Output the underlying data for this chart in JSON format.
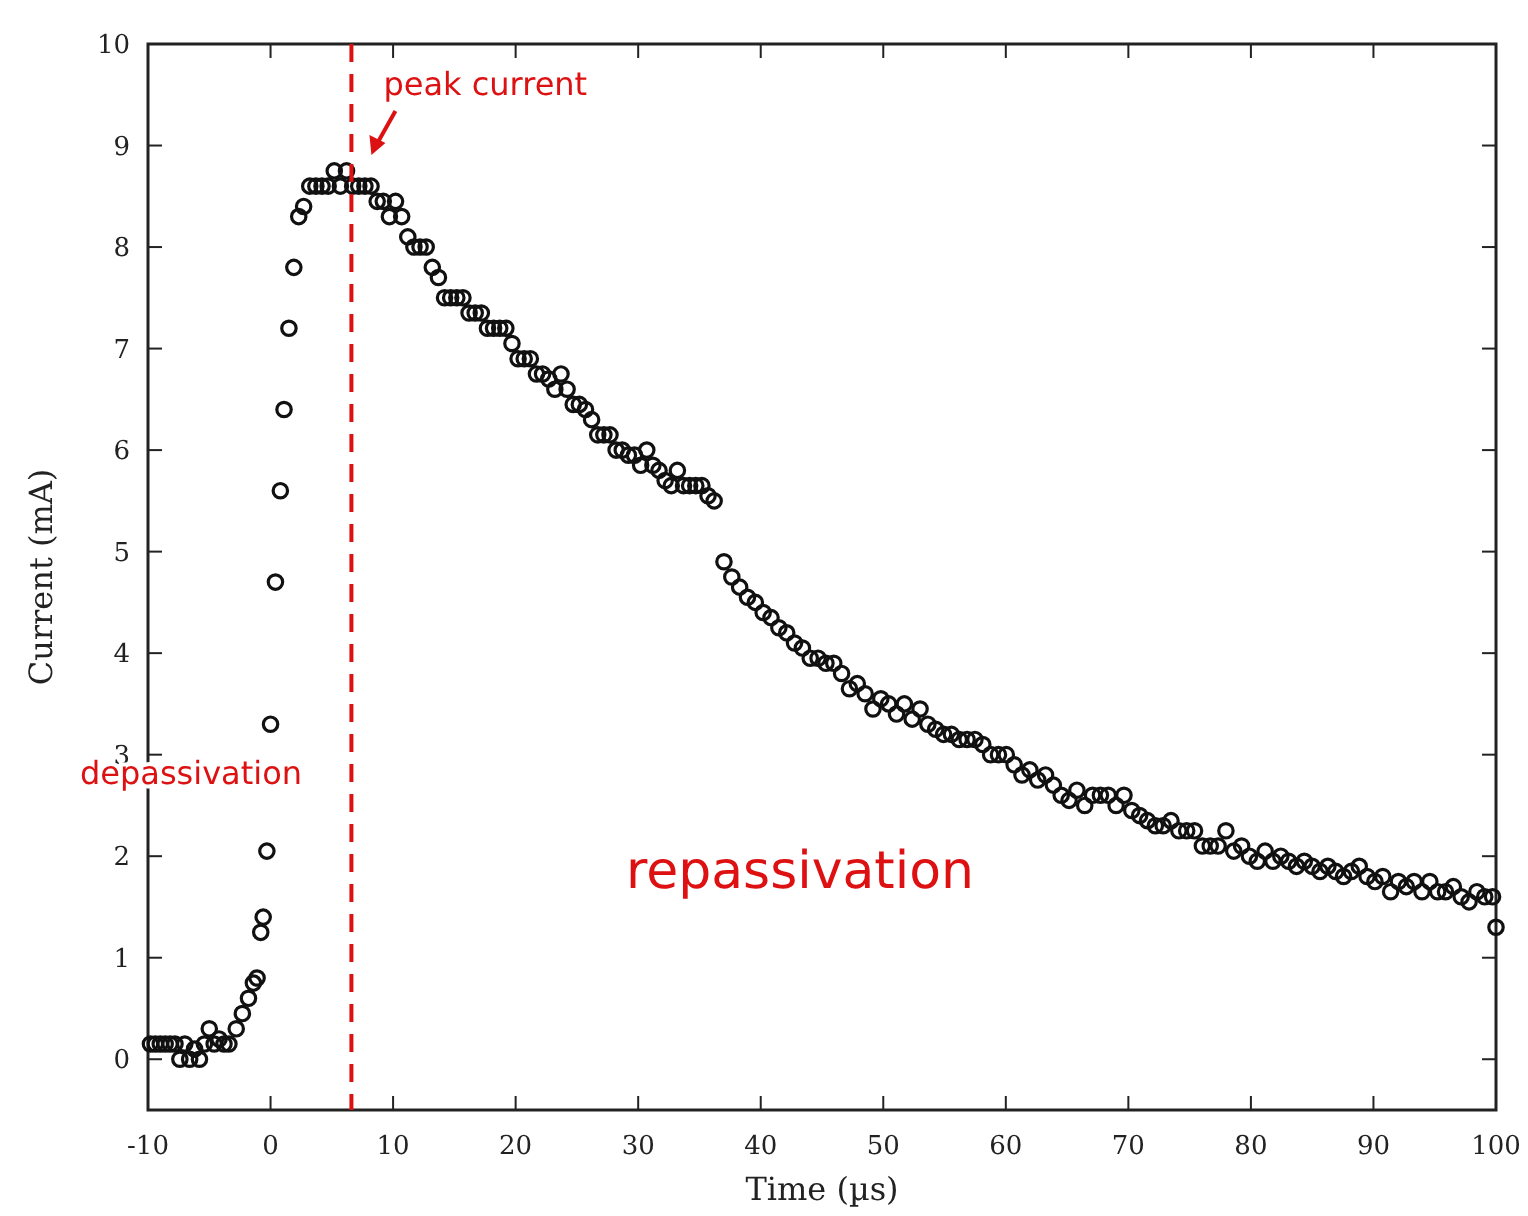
{
  "chart_data": {
    "type": "scatter",
    "xlabel": "Time (µs)",
    "ylabel": "Current (mA)",
    "xlim": [
      -10,
      100
    ],
    "ylim": [
      -0.5,
      10
    ],
    "xticks": [
      -10,
      0,
      10,
      20,
      30,
      40,
      50,
      60,
      70,
      80,
      90,
      100
    ],
    "yticks": [
      0,
      1,
      2,
      3,
      4,
      5,
      6,
      7,
      8,
      9,
      10
    ],
    "marker": "circle",
    "grid": false,
    "series": [
      {
        "color": "#111111",
        "x": [
          -9.8,
          -9.4,
          -9,
          -8.6,
          -8.2,
          -7.8,
          -7.4,
          -7,
          -6.6,
          -6.2,
          -5.8,
          -5.4,
          -5,
          -4.6,
          -4.2,
          -3.8,
          -3.4,
          -2.8,
          -2.3,
          -1.8,
          -1.4,
          -1.1,
          -0.8,
          -0.6,
          -0.3,
          0,
          0.4,
          0.8,
          1.1,
          1.5,
          1.9,
          2.3,
          2.7,
          3.2,
          3.7,
          4.2,
          4.7,
          5.2,
          5.7,
          6.2,
          6.7,
          7.2,
          7.7,
          8.2,
          8.7,
          9.2,
          9.7,
          10.2,
          10.7,
          11.2,
          11.7,
          12.2,
          12.7,
          13.2,
          13.7,
          14.2,
          14.7,
          15.2,
          15.7,
          16.2,
          16.7,
          17.2,
          17.7,
          18.2,
          18.7,
          19.2,
          19.7,
          20.2,
          20.7,
          21.2,
          21.7,
          22.2,
          22.7,
          23.2,
          23.7,
          24.2,
          24.7,
          25.2,
          25.7,
          26.2,
          26.7,
          27.2,
          27.7,
          28.2,
          28.7,
          29.2,
          29.7,
          30.2,
          30.7,
          31.2,
          31.7,
          32.2,
          32.7,
          33.2,
          33.7,
          34.2,
          34.7,
          35.2,
          35.7,
          36.2,
          37.0,
          37.64,
          38.28,
          38.92,
          39.56,
          40.2,
          40.84,
          41.48,
          42.12,
          42.76,
          43.4,
          44.04,
          44.68,
          45.32,
          45.96,
          46.6,
          47.24,
          47.88,
          48.52,
          49.16,
          49.8,
          50.44,
          51.08,
          51.72,
          52.36,
          53.0,
          53.64,
          54.28,
          54.92,
          55.56,
          56.2,
          56.84,
          57.48,
          58.12,
          58.76,
          59.4,
          60.04,
          60.68,
          61.32,
          61.96,
          62.6,
          63.24,
          63.88,
          64.52,
          65.16,
          65.8,
          66.44,
          67.08,
          67.72,
          68.36,
          69.0,
          69.64,
          70.28,
          70.92,
          71.56,
          72.2,
          72.84,
          73.48,
          74.12,
          74.76,
          75.4,
          76.04,
          76.68,
          77.32,
          77.96,
          78.6,
          79.24,
          79.88,
          80.52,
          81.16,
          81.8,
          82.44,
          83.08,
          83.72,
          84.36,
          85.0,
          85.64,
          86.28,
          86.92,
          87.56,
          88.2,
          88.84,
          89.48,
          90.12,
          90.76,
          91.4,
          92.04,
          92.68,
          93.32,
          93.96,
          94.6,
          95.24,
          95.88,
          96.52,
          97.16,
          97.8,
          98.44,
          99.08,
          99.72,
          100
        ],
        "values": [
          0.15,
          0.15,
          0.15,
          0.15,
          0.15,
          0.15,
          0,
          0.15,
          0,
          0.1,
          0,
          0.15,
          0.3,
          0.15,
          0.2,
          0.15,
          0.15,
          0.3,
          0.45,
          0.6,
          0.75,
          0.8,
          1.25,
          1.4,
          2.05,
          3.3,
          4.7,
          5.6,
          6.4,
          7.2,
          7.8,
          8.3,
          8.4,
          8.6,
          8.6,
          8.6,
          8.6,
          8.75,
          8.6,
          8.75,
          8.6,
          8.6,
          8.6,
          8.6,
          8.45,
          8.45,
          8.3,
          8.45,
          8.3,
          8.1,
          8.0,
          8.0,
          8.0,
          7.8,
          7.7,
          7.5,
          7.5,
          7.5,
          7.5,
          7.35,
          7.35,
          7.35,
          7.2,
          7.2,
          7.2,
          7.2,
          7.05,
          6.9,
          6.9,
          6.9,
          6.75,
          6.75,
          6.7,
          6.6,
          6.75,
          6.6,
          6.45,
          6.45,
          6.4,
          6.3,
          6.15,
          6.15,
          6.15,
          6.0,
          6.0,
          5.95,
          5.95,
          5.85,
          6.0,
          5.85,
          5.8,
          5.7,
          5.65,
          5.8,
          5.65,
          5.65,
          5.65,
          5.65,
          5.55,
          5.5,
          4.9,
          4.75,
          4.65,
          4.55,
          4.5,
          4.4,
          4.35,
          4.25,
          4.2,
          4.1,
          4.05,
          3.95,
          3.95,
          3.9,
          3.9,
          3.8,
          3.65,
          3.7,
          3.6,
          3.45,
          3.55,
          3.5,
          3.4,
          3.5,
          3.35,
          3.45,
          3.3,
          3.25,
          3.2,
          3.2,
          3.15,
          3.15,
          3.15,
          3.1,
          3.0,
          3.0,
          3.0,
          2.9,
          2.8,
          2.85,
          2.75,
          2.8,
          2.7,
          2.6,
          2.55,
          2.65,
          2.5,
          2.6,
          2.6,
          2.6,
          2.5,
          2.6,
          2.45,
          2.4,
          2.35,
          2.3,
          2.3,
          2.35,
          2.25,
          2.25,
          2.25,
          2.1,
          2.1,
          2.1,
          2.25,
          2.05,
          2.1,
          2.0,
          1.95,
          2.05,
          1.95,
          2.0,
          1.95,
          1.9,
          1.95,
          1.9,
          1.85,
          1.9,
          1.85,
          1.8,
          1.85,
          1.9,
          1.8,
          1.75,
          1.8,
          1.65,
          1.75,
          1.7,
          1.75,
          1.65,
          1.75,
          1.65,
          1.65,
          1.7,
          1.6,
          1.55,
          1.65,
          1.6,
          1.6,
          1.3
        ]
      }
    ],
    "ref_lines": [
      {
        "axis": "x",
        "value": 6.6,
        "color": "#dd1111",
        "line_style": "dashed"
      }
    ],
    "annotations": [
      {
        "text": "peak current",
        "x": 6.6,
        "y": 8.75
      },
      "depassivation",
      "repassivation"
    ]
  }
}
